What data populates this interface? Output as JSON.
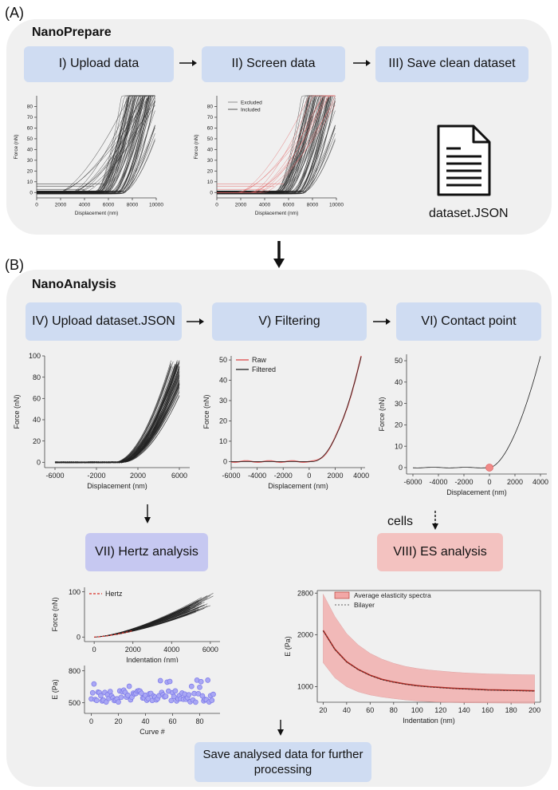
{
  "panel_a": {
    "label": "(A)",
    "title": "NanoPrepare",
    "steps": [
      "I) Upload data",
      "II) Screen data",
      "III) Save clean dataset"
    ],
    "file_label": "dataset.JSON"
  },
  "panel_b": {
    "label": "(B)",
    "title": "NanoAnalysis",
    "steps": [
      "IV) Upload dataset.JSON",
      "V) Filtering",
      "VI) Contact point"
    ],
    "hertz_step": "VII) Hertz analysis",
    "es_step": "VIII) ES analysis",
    "cells_label": "cells",
    "save_step": "Save analysed data for further processing"
  },
  "colors": {
    "panel_bg": "#f0f0f0",
    "step_blue": "#cfdcf2",
    "step_purple": "#c6c8f1",
    "step_red": "#f3c2c0",
    "curve_gray": "#222222",
    "raw_red": "#e26a6a",
    "hertz_red": "#d9332b",
    "scatter_blue": "#7b78e8",
    "es_band": "#f2a7a6"
  },
  "chart_data": [
    {
      "id": "upload",
      "type": "line",
      "xlabel": "Displacement (nm)",
      "ylabel": "Force (nN)",
      "xlim": [
        0,
        10000
      ],
      "ylim": [
        -5,
        90
      ],
      "xticks": [
        0,
        2000,
        4000,
        6000,
        8000,
        10000
      ],
      "yticks": [
        0,
        10,
        20,
        30,
        40,
        50,
        60,
        70,
        80
      ],
      "series_description": "bundle of force-displacement curves"
    },
    {
      "id": "screen",
      "type": "line",
      "xlabel": "Displacement (nm)",
      "ylabel": "Force (nN)",
      "xlim": [
        0,
        10000
      ],
      "ylim": [
        -5,
        90
      ],
      "xticks": [
        0,
        2000,
        4000,
        6000,
        8000,
        10000
      ],
      "yticks": [
        0,
        10,
        20,
        30,
        40,
        50,
        60,
        70,
        80
      ],
      "legend": [
        "Excluded",
        "Included"
      ]
    },
    {
      "id": "upload_b",
      "type": "line",
      "xlabel": "Displacement (nm)",
      "ylabel": "Force (nN)",
      "xlim": [
        -7000,
        7000
      ],
      "ylim": [
        -5,
        100
      ],
      "xticks": [
        -6000,
        -2000,
        2000,
        6000
      ],
      "yticks": [
        0,
        20,
        40,
        60,
        80,
        100
      ]
    },
    {
      "id": "filtering",
      "type": "line",
      "xlabel": "Displacement (nm)",
      "ylabel": "Force (nN)",
      "xlim": [
        -6000,
        4300
      ],
      "ylim": [
        -3,
        52
      ],
      "xticks": [
        -6000,
        -4000,
        -2000,
        0,
        2000,
        4000
      ],
      "yticks": [
        0,
        10,
        20,
        30,
        40,
        50
      ],
      "legend": [
        "Raw",
        "Filtered"
      ]
    },
    {
      "id": "contact",
      "type": "line",
      "xlabel": "Displacement (nm)",
      "ylabel": "Force (nN)",
      "xlim": [
        -6500,
        4500
      ],
      "ylim": [
        -3,
        53
      ],
      "xticks": [
        -6000,
        -4000,
        -2000,
        0,
        2000,
        4000
      ],
      "yticks": [
        0,
        10,
        20,
        30,
        40,
        50
      ],
      "contact_point": [
        0,
        0
      ]
    },
    {
      "id": "hertz",
      "type": "line",
      "xlabel": "Indentation (nm)",
      "ylabel": "Force (nN)",
      "xlim": [
        -500,
        6500
      ],
      "ylim": [
        -10,
        110
      ],
      "xticks": [
        0,
        2000,
        4000,
        6000
      ],
      "yticks": [
        0,
        100
      ],
      "legend": [
        "Hertz"
      ]
    },
    {
      "id": "modulus",
      "type": "scatter",
      "xlabel": "Curve #",
      "ylabel": "E (Pa)",
      "xlim": [
        -5,
        95
      ],
      "ylim": [
        400,
        850
      ],
      "xticks": [
        0,
        20,
        40,
        60,
        80
      ],
      "yticks": [
        500,
        800
      ]
    },
    {
      "id": "es",
      "type": "line",
      "xlabel": "Indentation (nm)",
      "ylabel": "E (Pa)",
      "xlim": [
        15,
        205
      ],
      "ylim": [
        700,
        2850
      ],
      "xticks": [
        20,
        40,
        60,
        80,
        100,
        120,
        140,
        160,
        180,
        200
      ],
      "yticks": [
        1000,
        2000,
        2800
      ],
      "legend": [
        "Average elasticity spectra",
        "Bilayer"
      ],
      "x": [
        20,
        30,
        40,
        50,
        60,
        70,
        80,
        90,
        100,
        110,
        120,
        130,
        140,
        150,
        160,
        170,
        180,
        190,
        200
      ],
      "mean": [
        2080,
        1720,
        1480,
        1330,
        1220,
        1140,
        1090,
        1050,
        1020,
        1000,
        985,
        970,
        960,
        950,
        940,
        935,
        930,
        925,
        920
      ],
      "upper": [
        2780,
        2350,
        2020,
        1800,
        1640,
        1530,
        1450,
        1390,
        1350,
        1320,
        1300,
        1280,
        1265,
        1255,
        1245,
        1240,
        1235,
        1230,
        1228
      ],
      "lower": [
        1460,
        1170,
        1000,
        900,
        840,
        800,
        770,
        745,
        725,
        712,
        700,
        695,
        690,
        688,
        686,
        684,
        683,
        682,
        681
      ]
    }
  ]
}
